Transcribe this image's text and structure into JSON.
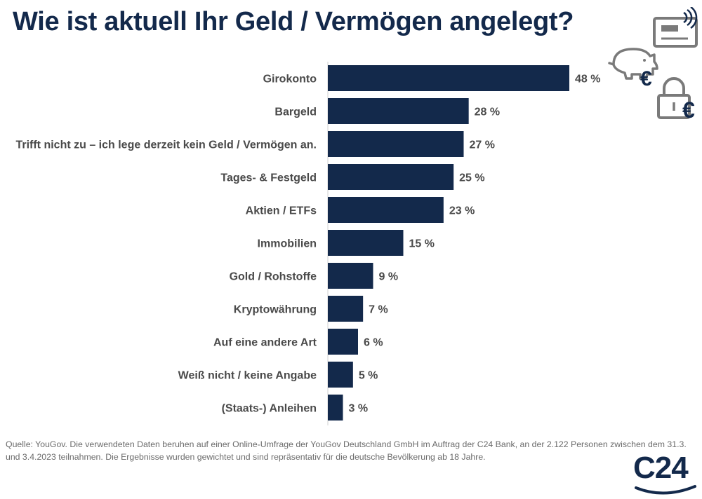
{
  "title": "Wie ist aktuell Ihr Geld / Vermögen angelegt?",
  "source_note": "Quelle: YouGov. Die verwendeten Daten beruhen auf einer Online-Umfrage der YouGov Deutschland GmbH im Auftrag der C24 Bank, an der 2.122 Personen zwischen dem 31.3. und 3.4.2023 teilnahmen. Die Ergebnisse wurden gewichtet und sind repräsentativ für die deutsche Bevölkerung ab 18 Jahre.",
  "logo": {
    "text": "C24"
  },
  "icons": [
    "contactless-card-icon",
    "piggy-bank-euro-icon",
    "padlock-euro-icon"
  ],
  "colors": {
    "bar": "#13294b",
    "accent": "#13294b",
    "icon_grey": "#7a7a7a"
  },
  "chart_data": {
    "type": "bar",
    "orientation": "horizontal",
    "categories": [
      "Girokonto",
      "Bargeld",
      "Trifft nicht zu – ich lege derzeit kein Geld / Vermögen an.",
      "Tages- & Festgeld",
      "Aktien / ETFs",
      "Immobilien",
      "Gold / Rohstoffe",
      "Kryptowährung",
      "Auf eine andere Art",
      "Weiß nicht / keine Angabe",
      "(Staats-) Anleihen"
    ],
    "values": [
      48,
      28,
      27,
      25,
      23,
      15,
      9,
      7,
      6,
      5,
      3
    ],
    "value_labels": [
      "48 %",
      "28 %",
      "27 %",
      "25 %",
      "23 %",
      "15 %",
      "9 %",
      "7 %",
      "6 %",
      "5 %",
      "3 %"
    ],
    "unit": "%",
    "xlim": [
      0,
      48
    ],
    "grid": false,
    "legend": "none"
  }
}
